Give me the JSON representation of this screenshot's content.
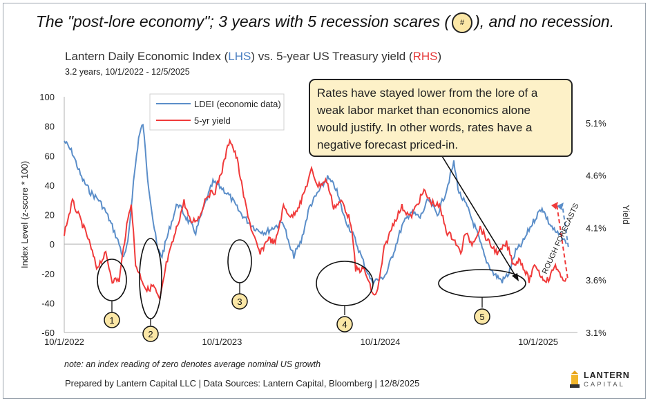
{
  "headline": {
    "before": "The \"post-lore economy\"; 3 years with 5 recession scares (",
    "badge": "#",
    "after": "), and no recession."
  },
  "subtitle": {
    "part1": "Lantern Daily Economic Index (",
    "lhs": "LHS",
    "part2": ") vs. 5-year US Treasury yield (",
    "rhs": "RHS",
    "part3": ")"
  },
  "date_range": "3.2 years, 10/1/2022 - 12/5/2025",
  "callout_text": "Rates have stayed lower from the lore of a weak labor market than economics alone would justify. In other words, rates have a negative forecast priced-in.",
  "forecast_label": "ROUGH FORECASTS",
  "note": "note: an index reading of zero denotes average nominal US growth",
  "source": "Prepared by Lantern Capital LLC | Data Sources: Lantern Capital, Bloomberg  | 12/8/2025",
  "logo": {
    "line1": "LANTERN",
    "line2": "CAPITAL"
  },
  "colors": {
    "ldei": "#5b8ec9",
    "yield": "#f03a3a",
    "callout_bg": "#fdf1c8",
    "badge_bg": "#fbe7a6",
    "axis": "#b0b0b0"
  },
  "chart_data": {
    "type": "line",
    "y_left": {
      "label": "Index Level (z-score * 100)",
      "range": [
        -60,
        100
      ],
      "ticks": [
        "100",
        "80",
        "60",
        "40",
        "20",
        "0",
        "-20",
        "-40",
        "-60"
      ]
    },
    "y_right": {
      "label": "Yield",
      "range": [
        3.1,
        5.35
      ],
      "ticks": [
        "5.1%",
        "4.6%",
        "4.1%",
        "3.6%",
        "3.1%"
      ]
    },
    "x_range": [
      "2022-10-01",
      "2025-12-31"
    ],
    "x_ticks": [
      "10/1/2022",
      "10/1/2023",
      "10/1/2024",
      "10/1/2025"
    ],
    "legend": {
      "placement": "top-left",
      "entries": [
        "LDEI (economic data)",
        "5-yr yield"
      ]
    },
    "series": [
      {
        "name": "LDEI (economic data)",
        "axis": "left",
        "points": [
          [
            "2022-10-01",
            70
          ],
          [
            "2022-10-20",
            62
          ],
          [
            "2022-11-10",
            45
          ],
          [
            "2022-12-01",
            35
          ],
          [
            "2022-12-20",
            30
          ],
          [
            "2023-01-05",
            22
          ],
          [
            "2023-01-20",
            12
          ],
          [
            "2023-02-05",
            0
          ],
          [
            "2023-02-15",
            -10
          ],
          [
            "2023-02-25",
            0
          ],
          [
            "2023-03-10",
            42
          ],
          [
            "2023-03-22",
            72
          ],
          [
            "2023-04-01",
            82
          ],
          [
            "2023-04-12",
            45
          ],
          [
            "2023-04-25",
            15
          ],
          [
            "2023-05-05",
            -4
          ],
          [
            "2023-05-15",
            -8
          ],
          [
            "2023-06-01",
            10
          ],
          [
            "2023-06-20",
            28
          ],
          [
            "2023-07-10",
            18
          ],
          [
            "2023-08-01",
            8
          ],
          [
            "2023-08-20",
            25
          ],
          [
            "2023-09-10",
            42
          ],
          [
            "2023-10-01",
            38
          ],
          [
            "2023-10-20",
            32
          ],
          [
            "2023-11-10",
            22
          ],
          [
            "2023-12-01",
            15
          ],
          [
            "2023-12-20",
            10
          ],
          [
            "2024-01-10",
            8
          ],
          [
            "2024-02-01",
            12
          ],
          [
            "2024-02-20",
            15
          ],
          [
            "2024-03-05",
            -2
          ],
          [
            "2024-03-15",
            -8
          ],
          [
            "2024-04-01",
            2
          ],
          [
            "2024-04-20",
            25
          ],
          [
            "2024-05-10",
            35
          ],
          [
            "2024-06-01",
            45
          ],
          [
            "2024-06-20",
            38
          ],
          [
            "2024-07-10",
            18
          ],
          [
            "2024-08-01",
            5
          ],
          [
            "2024-08-20",
            -10
          ],
          [
            "2024-09-10",
            -25
          ],
          [
            "2024-10-01",
            -24
          ],
          [
            "2024-10-15",
            -20
          ],
          [
            "2024-11-01",
            -5
          ],
          [
            "2024-11-20",
            12
          ],
          [
            "2024-12-10",
            22
          ],
          [
            "2025-01-01",
            18
          ],
          [
            "2025-01-20",
            30
          ],
          [
            "2025-02-10",
            20
          ],
          [
            "2025-03-01",
            35
          ],
          [
            "2025-03-20",
            55
          ],
          [
            "2025-04-01",
            35
          ],
          [
            "2025-04-20",
            25
          ],
          [
            "2025-05-10",
            10
          ],
          [
            "2025-06-01",
            -10
          ],
          [
            "2025-06-20",
            -20
          ],
          [
            "2025-07-10",
            -25
          ],
          [
            "2025-07-25",
            -20
          ],
          [
            "2025-08-10",
            -5
          ],
          [
            "2025-08-25",
            0
          ],
          [
            "2025-09-10",
            10
          ],
          [
            "2025-09-25",
            18
          ],
          [
            "2025-10-10",
            25
          ],
          [
            "2025-10-25",
            15
          ],
          [
            "2025-11-10",
            8
          ],
          [
            "2025-11-25",
            5
          ],
          [
            "2025-12-05",
            0
          ]
        ]
      },
      {
        "name": "5-yr yield",
        "axis": "right",
        "points": [
          [
            "2022-10-01",
            4.05
          ],
          [
            "2022-10-20",
            4.35
          ],
          [
            "2022-11-05",
            4.2
          ],
          [
            "2022-11-25",
            4.0
          ],
          [
            "2022-12-15",
            3.72
          ],
          [
            "2023-01-05",
            3.85
          ],
          [
            "2023-01-20",
            3.6
          ],
          [
            "2023-02-05",
            3.6
          ],
          [
            "2023-02-20",
            4.05
          ],
          [
            "2023-03-05",
            4.35
          ],
          [
            "2023-03-15",
            3.75
          ],
          [
            "2023-03-25",
            3.65
          ],
          [
            "2023-04-10",
            3.5
          ],
          [
            "2023-04-25",
            3.55
          ],
          [
            "2023-05-10",
            3.4
          ],
          [
            "2023-05-25",
            3.75
          ],
          [
            "2023-06-15",
            4.05
          ],
          [
            "2023-07-05",
            4.35
          ],
          [
            "2023-07-20",
            4.15
          ],
          [
            "2023-08-10",
            4.2
          ],
          [
            "2023-08-25",
            4.4
          ],
          [
            "2023-09-15",
            4.45
          ],
          [
            "2023-10-01",
            4.65
          ],
          [
            "2023-10-19",
            4.95
          ],
          [
            "2023-11-05",
            4.75
          ],
          [
            "2023-11-20",
            4.4
          ],
          [
            "2023-12-10",
            4.05
          ],
          [
            "2023-12-28",
            3.85
          ],
          [
            "2024-01-15",
            4.0
          ],
          [
            "2024-02-01",
            3.95
          ],
          [
            "2024-02-20",
            4.3
          ],
          [
            "2024-03-10",
            4.2
          ],
          [
            "2024-04-01",
            4.35
          ],
          [
            "2024-04-25",
            4.65
          ],
          [
            "2024-05-10",
            4.5
          ],
          [
            "2024-05-30",
            4.55
          ],
          [
            "2024-06-15",
            4.3
          ],
          [
            "2024-07-05",
            4.35
          ],
          [
            "2024-07-25",
            4.15
          ],
          [
            "2024-08-05",
            3.7
          ],
          [
            "2024-08-25",
            3.7
          ],
          [
            "2024-09-15",
            3.45
          ],
          [
            "2024-09-25",
            3.5
          ],
          [
            "2024-10-10",
            3.9
          ],
          [
            "2024-11-01",
            4.15
          ],
          [
            "2024-11-20",
            4.3
          ],
          [
            "2024-12-10",
            4.2
          ],
          [
            "2025-01-10",
            4.45
          ],
          [
            "2025-01-25",
            4.35
          ],
          [
            "2025-02-15",
            4.3
          ],
          [
            "2025-03-05",
            4.05
          ],
          [
            "2025-03-20",
            4.0
          ],
          [
            "2025-04-05",
            3.85
          ],
          [
            "2025-04-15",
            4.05
          ],
          [
            "2025-05-01",
            3.95
          ],
          [
            "2025-05-20",
            4.1
          ],
          [
            "2025-06-10",
            3.95
          ],
          [
            "2025-07-01",
            3.85
          ],
          [
            "2025-07-20",
            3.95
          ],
          [
            "2025-08-05",
            3.75
          ],
          [
            "2025-08-20",
            3.8
          ],
          [
            "2025-09-10",
            3.6
          ],
          [
            "2025-09-25",
            3.75
          ],
          [
            "2025-10-10",
            3.62
          ],
          [
            "2025-10-25",
            3.6
          ],
          [
            "2025-11-10",
            3.75
          ],
          [
            "2025-11-25",
            3.6
          ],
          [
            "2025-12-05",
            3.62
          ]
        ]
      }
    ],
    "recession_scares": [
      "1",
      "2",
      "3",
      "4",
      "5"
    ]
  }
}
